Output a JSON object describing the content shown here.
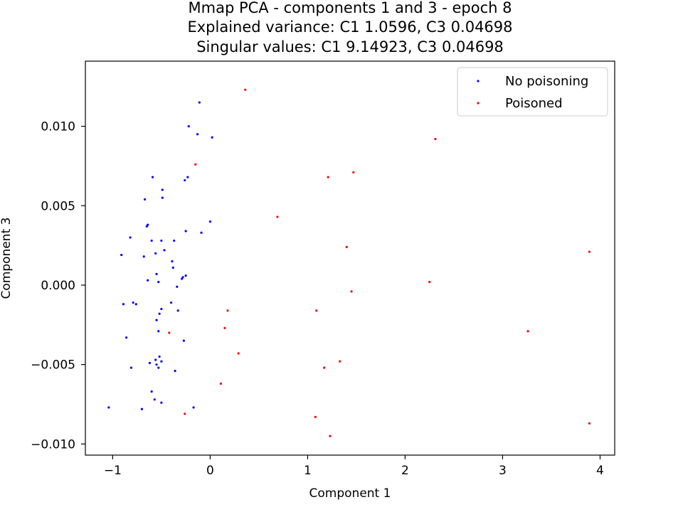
{
  "chart_data": {
    "type": "scatter",
    "title": [
      "Mmap PCA - components 1 and 3 - epoch 8",
      "Explained variance: C1 1.0596, C3 0.04698",
      "Singular values: C1 9.14923, C3 0.04698"
    ],
    "xlabel": "Component 1",
    "ylabel": "Component 3",
    "xlim": [
      -1.28,
      4.15
    ],
    "ylim": [
      -0.0107,
      0.0141
    ],
    "xticks": [
      -1,
      0,
      1,
      2,
      3,
      4
    ],
    "xtick_labels": [
      "−1",
      "0",
      "1",
      "2",
      "3",
      "4"
    ],
    "yticks": [
      -0.01,
      -0.005,
      0,
      0.005,
      0.01
    ],
    "ytick_labels": [
      "−0.010",
      "−0.005",
      "0.000",
      "0.005",
      "0.010"
    ],
    "grid": false,
    "legend_position": "top-right",
    "series": [
      {
        "name": "No poisoning",
        "color": "#0000ff",
        "points": [
          [
            -0.11,
            0.0115
          ],
          [
            -0.22,
            0.01
          ],
          [
            -0.13,
            0.0095
          ],
          [
            0.02,
            0.0093
          ],
          [
            -0.59,
            0.0068
          ],
          [
            -0.23,
            0.0068
          ],
          [
            -0.26,
            0.0066
          ],
          [
            -0.49,
            0.006
          ],
          [
            -0.49,
            0.0055
          ],
          [
            -0.67,
            0.0054
          ],
          [
            0.0,
            0.004
          ],
          [
            -0.64,
            0.0038
          ],
          [
            -0.65,
            0.0037
          ],
          [
            -0.25,
            0.0034
          ],
          [
            -0.09,
            0.0033
          ],
          [
            -0.82,
            0.003
          ],
          [
            -0.6,
            0.0028
          ],
          [
            -0.5,
            0.0028
          ],
          [
            -0.37,
            0.0028
          ],
          [
            -0.47,
            0.0022
          ],
          [
            -0.56,
            0.002
          ],
          [
            -0.91,
            0.0019
          ],
          [
            -0.68,
            0.0018
          ],
          [
            -0.39,
            0.0015
          ],
          [
            -0.38,
            0.0011
          ],
          [
            -0.55,
            0.0007
          ],
          [
            -0.25,
            0.0006
          ],
          [
            -0.28,
            0.0005
          ],
          [
            -0.29,
            0.0004
          ],
          [
            -0.64,
            0.0003
          ],
          [
            -0.53,
            0.0002
          ],
          [
            -0.34,
            -0.0001
          ],
          [
            -0.89,
            -0.0012
          ],
          [
            -0.79,
            -0.0011
          ],
          [
            -0.76,
            -0.0012
          ],
          [
            -0.4,
            -0.0011
          ],
          [
            -0.5,
            -0.0015
          ],
          [
            -0.33,
            -0.0016
          ],
          [
            -0.52,
            -0.0018
          ],
          [
            -0.55,
            -0.0022
          ],
          [
            -0.53,
            -0.0029
          ],
          [
            -0.86,
            -0.0033
          ],
          [
            -0.27,
            -0.0035
          ],
          [
            -0.52,
            -0.0045
          ],
          [
            -0.56,
            -0.0047
          ],
          [
            -0.5,
            -0.0048
          ],
          [
            -0.62,
            -0.0049
          ],
          [
            -0.55,
            -0.005
          ],
          [
            -0.53,
            -0.0052
          ],
          [
            -0.81,
            -0.0052
          ],
          [
            -0.36,
            -0.0054
          ],
          [
            -0.6,
            -0.0067
          ],
          [
            -0.57,
            -0.0072
          ],
          [
            -0.5,
            -0.0074
          ],
          [
            -1.04,
            -0.0077
          ],
          [
            -0.7,
            -0.0078
          ],
          [
            -0.17,
            -0.0077
          ]
        ]
      },
      {
        "name": "Poisoned",
        "color": "#ff0000",
        "points": [
          [
            0.36,
            0.0123
          ],
          [
            2.31,
            0.0092
          ],
          [
            -0.15,
            0.0076
          ],
          [
            1.47,
            0.0071
          ],
          [
            1.21,
            0.0068
          ],
          [
            0.69,
            0.0043
          ],
          [
            1.4,
            0.0024
          ],
          [
            3.89,
            0.0021
          ],
          [
            2.25,
            0.0002
          ],
          [
            1.45,
            -0.0004
          ],
          [
            0.18,
            -0.0016
          ],
          [
            1.09,
            -0.0016
          ],
          [
            0.15,
            -0.0027
          ],
          [
            3.26,
            -0.0029
          ],
          [
            -0.42,
            -0.003
          ],
          [
            0.29,
            -0.0043
          ],
          [
            1.33,
            -0.0048
          ],
          [
            1.17,
            -0.0052
          ],
          [
            0.11,
            -0.0062
          ],
          [
            -0.26,
            -0.0081
          ],
          [
            1.08,
            -0.0083
          ],
          [
            3.89,
            -0.0087
          ],
          [
            1.23,
            -0.0095
          ]
        ]
      }
    ]
  }
}
